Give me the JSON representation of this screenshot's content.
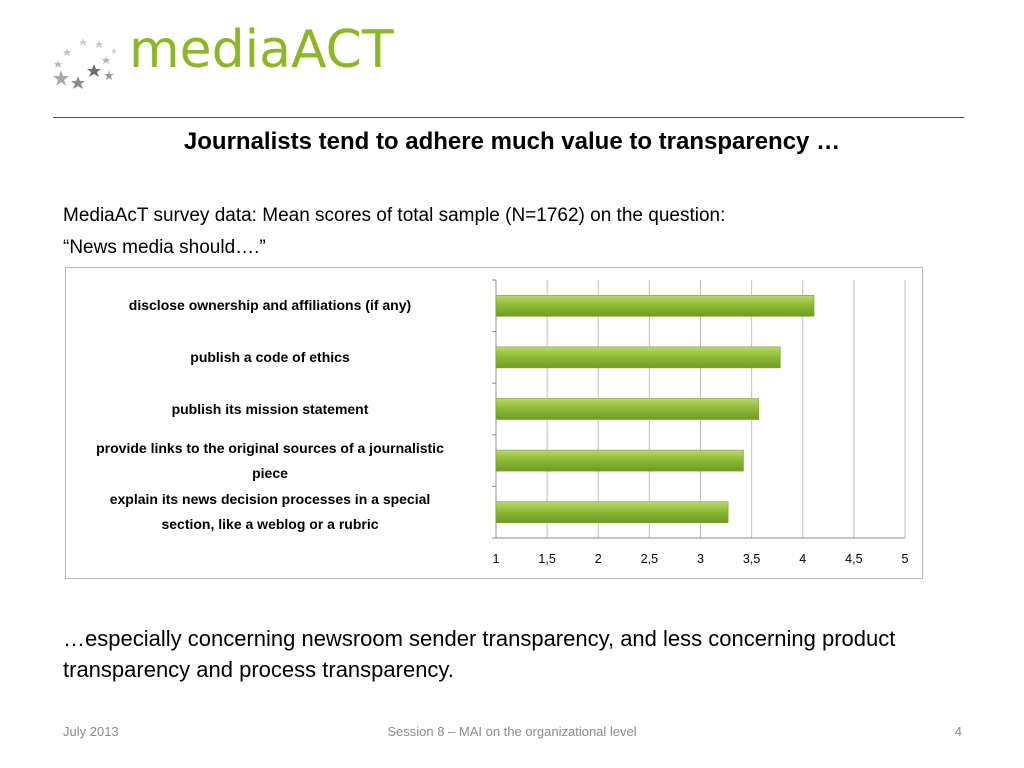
{
  "logo": {
    "text": "mediaACT",
    "color": "#8db626"
  },
  "slide_title": "Journalists tend to adhere much value to transparency …",
  "intro": {
    "line1": "MediaAcT survey data: Mean scores of total sample (N=1762) on the question:",
    "line2": "“News media should….”"
  },
  "conclusion": "…especially concerning newsroom sender transparency, and less concerning product transparency and process transparency.",
  "footer": {
    "date": "July 2013",
    "session": "Session 8 – MAI on the organizational level",
    "page": "4"
  },
  "chart_data": {
    "type": "bar",
    "orientation": "horizontal",
    "categories": [
      "disclose ownership and affiliations (if any)",
      "publish a code of ethics",
      "publish its mission statement",
      "provide links to the original sources of a journalistic piece",
      "explain its news decision processes in a special section, like a weblog or a rubric"
    ],
    "category_lines": [
      [
        "disclose ownership and affiliations (if any)"
      ],
      [
        "publish a code of ethics"
      ],
      [
        "publish its mission statement"
      ],
      [
        "provide links to the original sources of a journalistic",
        "piece"
      ],
      [
        "explain its news decision processes in a special",
        "section, like a weblog or a rubric"
      ]
    ],
    "values": [
      4.11,
      3.78,
      3.57,
      3.42,
      3.27
    ],
    "xlim": [
      1,
      5
    ],
    "xticks": [
      "1",
      "1,5",
      "2",
      "2,5",
      "3",
      "3,5",
      "4",
      "4,5",
      "5"
    ],
    "xtick_values": [
      1,
      1.5,
      2,
      2.5,
      3,
      3.5,
      4,
      4.5,
      5
    ],
    "grid": "vertical",
    "bar_color": "#8fbb37",
    "legend": "none"
  }
}
